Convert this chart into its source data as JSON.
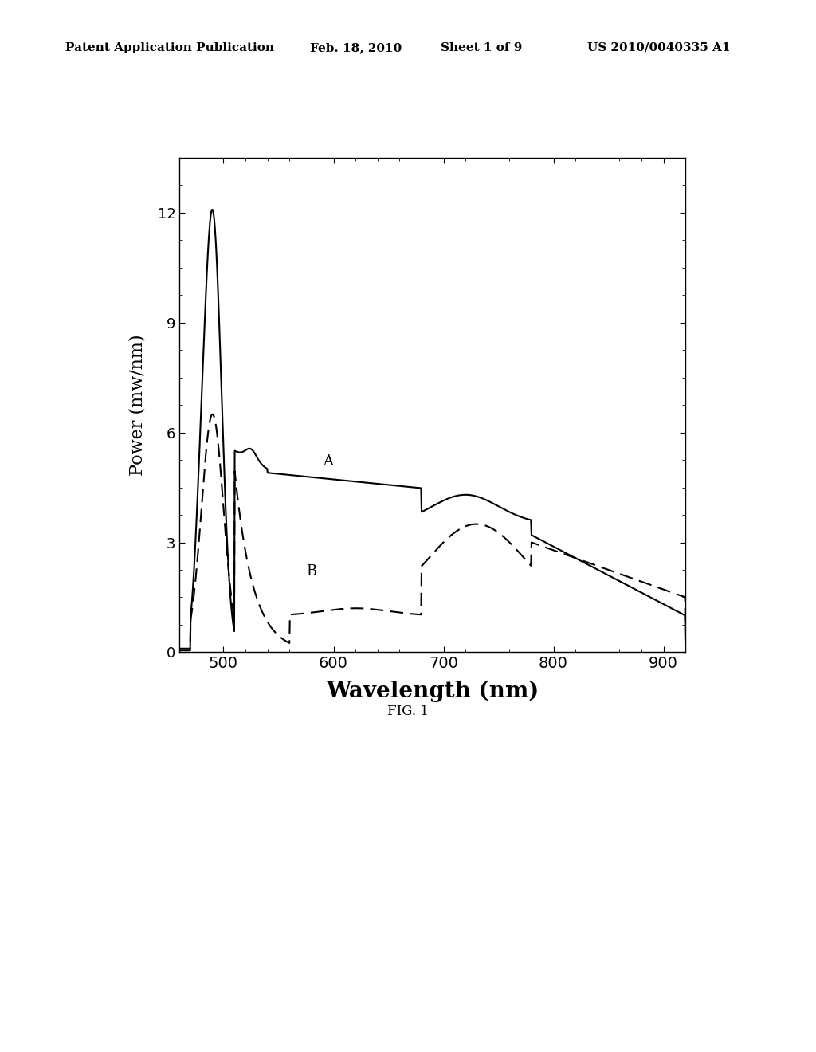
{
  "title_line1": "Patent Application Publication",
  "title_date": "Feb. 18, 2010",
  "title_sheet": "Sheet 1 of 9",
  "title_patent": "US 2010/0040335 A1",
  "fig_caption": "FIG. 1",
  "xlabel": "Wavelength (nm)",
  "ylabel": "Power (mw/nm)",
  "xlim": [
    460,
    920
  ],
  "ylim": [
    0,
    13.5
  ],
  "yticks": [
    0,
    3,
    6,
    9,
    12
  ],
  "xticks": [
    500,
    600,
    700,
    800,
    900
  ],
  "label_A": "A",
  "label_B": "B",
  "background_color": "#ffffff",
  "line_color": "#000000"
}
